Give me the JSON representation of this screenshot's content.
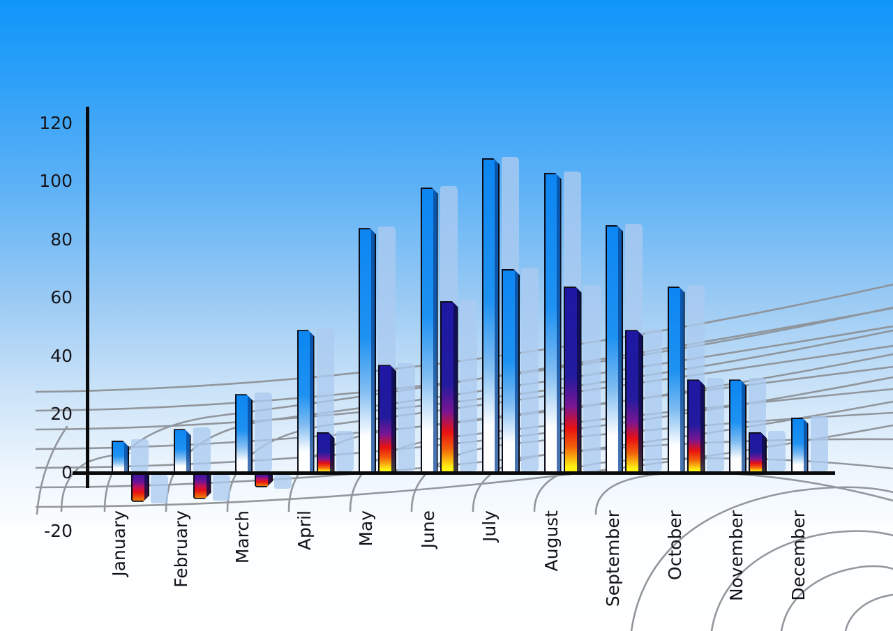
{
  "chart_data": {
    "type": "bar",
    "categories": [
      "January",
      "February",
      "March",
      "April",
      "May",
      "June",
      "July",
      "August",
      "September",
      "October",
      "November",
      "December"
    ],
    "series": [
      {
        "name": "series-1-blue-gradient",
        "values": [
          11,
          15,
          27,
          49,
          84,
          98,
          108,
          103,
          85,
          64,
          32,
          19
        ]
      },
      {
        "name": "series-2-flame-gradient",
        "values": [
          -10,
          -9,
          -5,
          14,
          37,
          59,
          70,
          64,
          49,
          32,
          14,
          null
        ],
        "bar_styles": [
          "flame",
          "flame",
          "flame",
          "flame",
          "flame",
          "flame",
          "blue",
          "flame",
          "flame",
          "flame",
          "flame",
          null
        ]
      }
    ],
    "y_axis": {
      "ticks": [
        120,
        100,
        80,
        60,
        40,
        20,
        0,
        -20
      ],
      "min": -20,
      "max": 120
    },
    "x_axis": {
      "tick_rotation": -90
    },
    "legend": "none",
    "grid": "perspective-warped-floor",
    "background": "sky-gradient",
    "shadow_bars": "light-blue-echo-offset-right",
    "colors": {
      "sky_top": "#0F96FA",
      "sky_bottom": "#FFFFFF",
      "bar_blue_top": "#0C86F2",
      "bar_fade_bottom": "#FFFFFF",
      "flame_navy": "#1D17A3",
      "flame_red": "#E81111",
      "flame_yellow": "#FFF312",
      "echo_bar": "#ACCBF0",
      "grid_line": "#8E9298",
      "axis_line": "#0A0A0A",
      "text": "#15151B"
    }
  }
}
